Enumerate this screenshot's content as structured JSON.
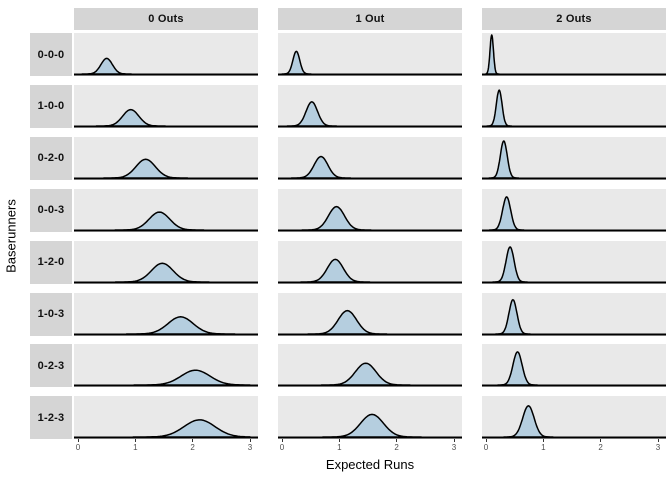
{
  "chart_data": {
    "type": "area",
    "subtype": "faceted-density-ridges",
    "title": "",
    "xlabel": "Expected Runs",
    "ylabel": "Baserunners",
    "xlim": [
      0,
      3
    ],
    "x_ticks": [
      0,
      1,
      2,
      3
    ],
    "x_tick_labels": [
      "0",
      "1",
      "2",
      "3"
    ],
    "grid": false,
    "legend": "none",
    "facet_columns": [
      "0 Outs",
      "1 Out",
      "2 Outs"
    ],
    "facet_rows": [
      "0-0-0",
      "1-0-0",
      "0-2-0",
      "0-0-3",
      "1-2-0",
      "1-0-3",
      "0-2-3",
      "1-2-3"
    ],
    "series": [
      {
        "name": "0 Outs",
        "means": [
          0.5,
          0.92,
          1.18,
          1.42,
          1.47,
          1.79,
          2.05,
          2.12
        ],
        "sds": [
          0.1,
          0.14,
          0.17,
          0.18,
          0.19,
          0.22,
          0.25,
          0.27
        ],
        "peaks": [
          0.4,
          0.42,
          0.48,
          0.46,
          0.48,
          0.44,
          0.38,
          0.44
        ]
      },
      {
        "name": "1 Out",
        "means": [
          0.25,
          0.52,
          0.68,
          0.95,
          0.93,
          1.14,
          1.46,
          1.57
        ],
        "sds": [
          0.06,
          0.1,
          0.12,
          0.14,
          0.14,
          0.16,
          0.18,
          0.2
        ],
        "peaks": [
          0.58,
          0.62,
          0.55,
          0.6,
          0.58,
          0.6,
          0.56,
          0.58
        ]
      },
      {
        "name": "2 Outs",
        "means": [
          0.1,
          0.23,
          0.31,
          0.36,
          0.42,
          0.47,
          0.55,
          0.74
        ],
        "sds": [
          0.03,
          0.05,
          0.06,
          0.07,
          0.07,
          0.07,
          0.08,
          0.1
        ],
        "peaks": [
          1.0,
          0.92,
          0.95,
          0.85,
          0.9,
          0.88,
          0.85,
          0.8
        ]
      }
    ],
    "colors": {
      "fill": "#b5cedf",
      "stroke": "#000000",
      "panel_bg": "#e9e9e9",
      "strip_bg": "#d5d5d5",
      "axis_line": "#000000",
      "tick_label": "#4d4d4d"
    }
  }
}
